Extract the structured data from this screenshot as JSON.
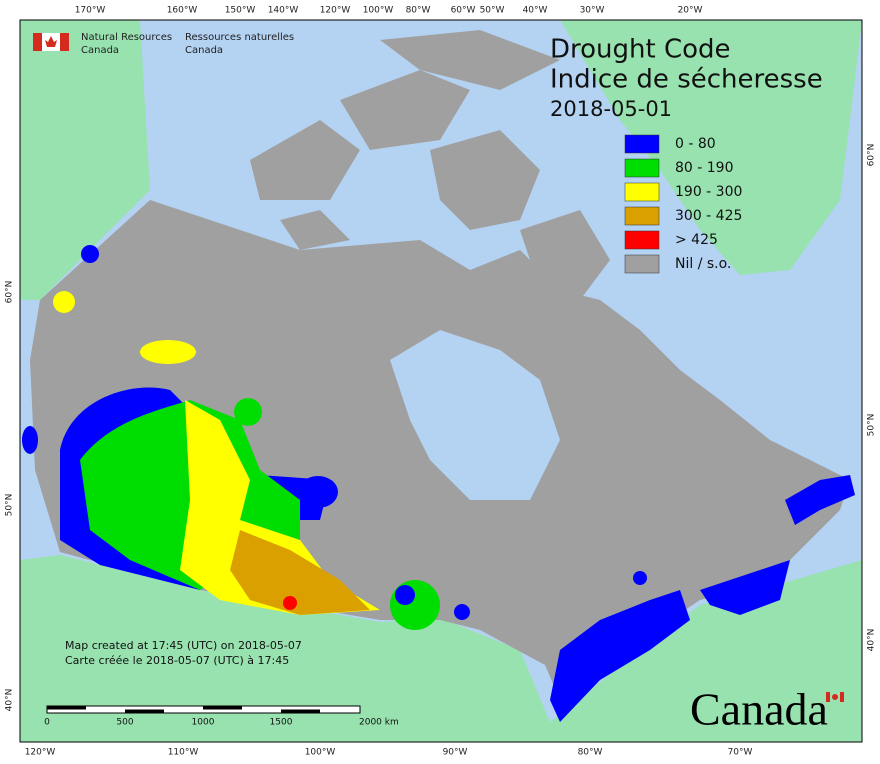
{
  "agency_en": [
    "Natural Resources",
    "Canada"
  ],
  "agency_fr": [
    "Ressources naturelles",
    "Canada"
  ],
  "title": "Drought Code",
  "title_fr": "Indice de sécheresse",
  "date": "2018-05-01",
  "legend": [
    {
      "label": "0 - 80",
      "color": "#0000ff"
    },
    {
      "label": "80 - 190",
      "color": "#00dd00"
    },
    {
      "label": "190 - 300",
      "color": "#ffff00"
    },
    {
      "label": "300 - 425",
      "color": "#d9a000"
    },
    {
      "label": "> 425",
      "color": "#ff0000"
    },
    {
      "label": "Nil / s.o.",
      "color": "#a0a0a0"
    }
  ],
  "top_labels": [
    "170°W",
    "160°W",
    "150°W",
    "140°W",
    "120°W",
    "100°W",
    "80°W",
    "60°W",
    "50°W",
    "40°W",
    "30°W",
    "20°W"
  ],
  "bottom_labels": [
    "120°W",
    "110°W",
    "100°W",
    "90°W",
    "80°W",
    "70°W"
  ],
  "left_labels": [
    "60°N",
    "50°N",
    "40°N"
  ],
  "right_labels": [
    "60°N",
    "50°N",
    "40°N"
  ],
  "note_en": "Map created at 17:45 (UTC) on 2018-05-07",
  "note_fr": "Carte créée le 2018-05-07 (UTC) à 17:45",
  "scale_labels": [
    "0",
    "500",
    "1000",
    "1500",
    "2000 km"
  ],
  "wordmark": "Canada"
}
